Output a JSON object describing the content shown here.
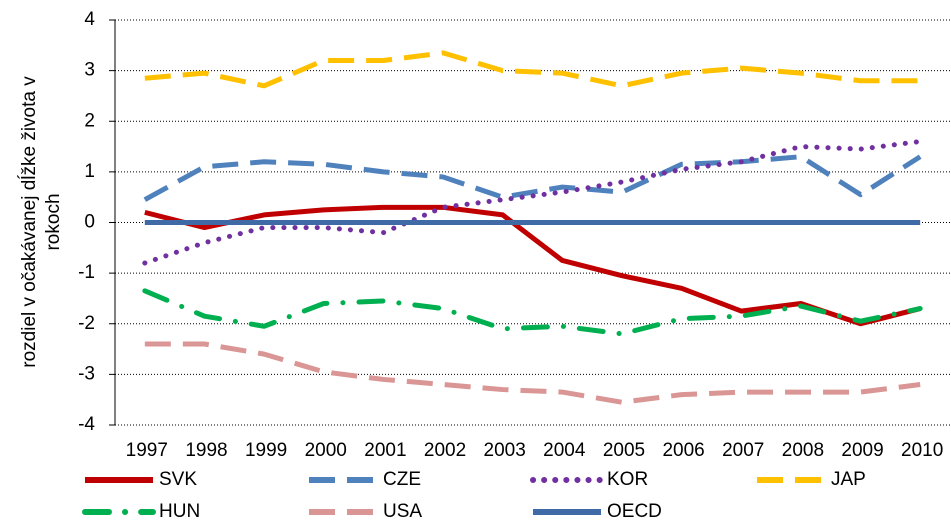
{
  "chart_data": {
    "type": "line",
    "ylabel": [
      "rozdiel v očakávanej dĺžke života v",
      "rokoch"
    ],
    "categories": [
      "1997",
      "1998",
      "1999",
      "2000",
      "2001",
      "2002",
      "2003",
      "2004",
      "2005",
      "2006",
      "2007",
      "2008",
      "2009",
      "2010"
    ],
    "ylim": [
      -4,
      4
    ],
    "yticks": [
      -4,
      -3,
      -2,
      -1,
      0,
      1,
      2,
      3,
      4
    ],
    "grid": true,
    "legend": "bottom",
    "series": [
      {
        "name": "SVK",
        "color": "#c00000",
        "dash": "solid",
        "values": [
          0.2,
          -0.1,
          0.15,
          0.25,
          0.3,
          0.3,
          0.15,
          -0.75,
          -1.05,
          -1.3,
          -1.75,
          -1.6,
          -2.0,
          -1.7
        ]
      },
      {
        "name": "CZE",
        "color": "#4f81bd",
        "dash": "dash",
        "values": [
          0.45,
          1.1,
          1.2,
          1.15,
          1.0,
          0.9,
          0.5,
          0.7,
          0.6,
          1.15,
          1.2,
          1.3,
          0.55,
          1.3
        ]
      },
      {
        "name": "KOR",
        "color": "#7030a0",
        "dash": "dot",
        "values": [
          -0.8,
          -0.4,
          -0.1,
          -0.1,
          -0.2,
          0.3,
          0.45,
          0.6,
          0.8,
          1.05,
          1.2,
          1.5,
          1.45,
          1.6
        ]
      },
      {
        "name": "JAP",
        "color": "#ffc000",
        "dash": "dash",
        "values": [
          2.85,
          2.95,
          2.7,
          3.2,
          3.2,
          3.35,
          3.0,
          2.95,
          2.7,
          2.95,
          3.05,
          2.95,
          2.8,
          2.8
        ]
      },
      {
        "name": "HUN",
        "color": "#00b050",
        "dash": "dashdot",
        "values": [
          -1.35,
          -1.85,
          -2.05,
          -1.6,
          -1.55,
          -1.7,
          -2.1,
          -2.05,
          -2.2,
          -1.9,
          -1.85,
          -1.65,
          -1.95,
          -1.7
        ]
      },
      {
        "name": "USA",
        "color": "#d99694",
        "dash": "dash",
        "values": [
          -2.4,
          -2.4,
          -2.6,
          -2.95,
          -3.1,
          -3.2,
          -3.3,
          -3.35,
          -3.55,
          -3.4,
          -3.35,
          -3.35,
          -3.35,
          -3.2
        ]
      },
      {
        "name": "OECD",
        "color": "#3f6aa6",
        "dash": "solid",
        "values": [
          0,
          0,
          0,
          0,
          0,
          0,
          0,
          0,
          0,
          0,
          0,
          0,
          0,
          0
        ]
      }
    ]
  }
}
